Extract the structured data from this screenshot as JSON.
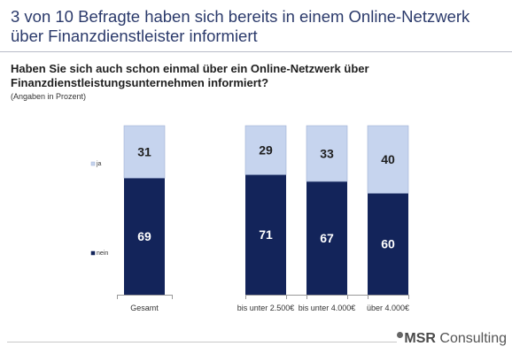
{
  "header": {
    "title": "3 von 10 Befragte haben sich bereits in einem Online-Netzwerk über Finanzdienstleister informiert"
  },
  "question": "Haben Sie sich auch schon einmal über ein Online-Netzwerk über Finanzdienstleistungsunternehmen informiert?",
  "unit_note": "(Angaben in Prozent)",
  "brand": {
    "msr": "MSR",
    "rest": " Consulting"
  },
  "colors": {
    "ja": "#c6d4ee",
    "nein": "#13245a",
    "ja_text": "#1f1f1f",
    "nein_text": "#ffffff"
  },
  "chart_data": {
    "type": "bar",
    "stacked": true,
    "categories": [
      "Gesamt",
      "bis unter 2.500€",
      "bis unter 4.000€",
      "über 4.000€"
    ],
    "series": [
      {
        "name": "nein",
        "values": [
          69,
          71,
          67,
          60
        ]
      },
      {
        "name": "ja",
        "values": [
          31,
          29,
          33,
          40
        ]
      }
    ],
    "ylim": [
      0,
      100
    ],
    "legend_position": "left",
    "grid": false
  }
}
